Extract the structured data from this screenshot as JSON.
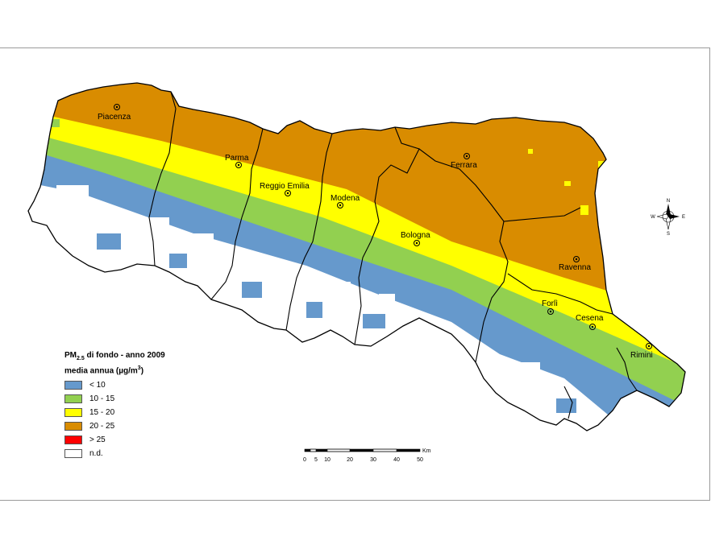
{
  "legend": {
    "title_line1_a": "PM",
    "title_line1_sub": "2.5",
    "title_line1_b": " di fondo - anno 2009",
    "title_line2_a": "media annua (µg/m",
    "title_line2_sup": "3",
    "title_line2_b": ")",
    "items": [
      {
        "label": "< 10",
        "color": "#6699cc"
      },
      {
        "label": "10 - 15",
        "color": "#92d050"
      },
      {
        "label": "15 - 20",
        "color": "#ffff00"
      },
      {
        "label": "20 - 25",
        "color": "#d98c00"
      },
      {
        "label": "> 25",
        "color": "#ff0000"
      },
      {
        "label": "n.d.",
        "color": "#ffffff"
      }
    ]
  },
  "cities": {
    "piacenza": "Piacenza",
    "parma": "Parma",
    "reggio_emilia": "Reggio Emilia",
    "modena": "Modena",
    "ferrara": "Ferrara",
    "bologna": "Bologna",
    "ravenna": "Ravenna",
    "forli": "Forlì",
    "cesena": "Cesena",
    "rimini": "Rimini"
  },
  "compass": {
    "n": "N",
    "s": "S",
    "e": "E",
    "w": "W"
  },
  "scale": {
    "unit": "Km",
    "ticks": [
      "0",
      "5",
      "10",
      "20",
      "30",
      "40",
      "50"
    ]
  }
}
